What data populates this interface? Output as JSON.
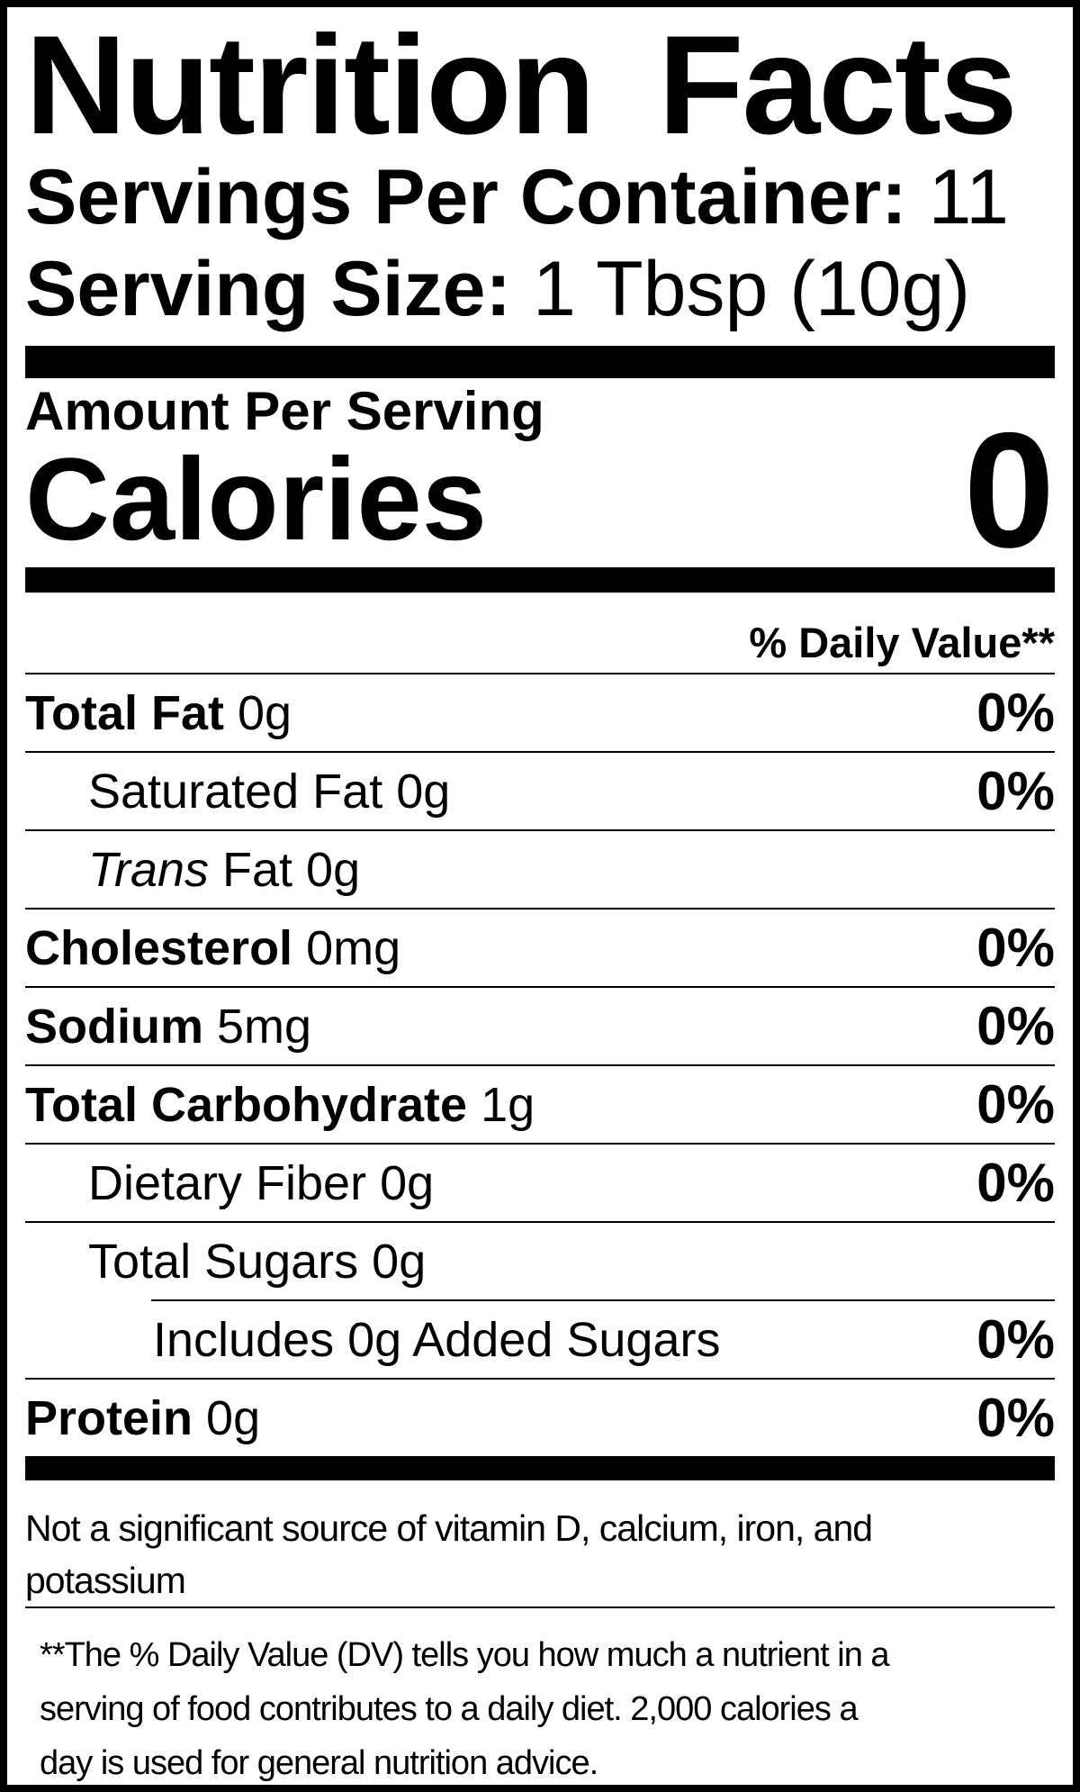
{
  "title": "Nutrition Facts",
  "header": {
    "servings_label": "Servings Per Container:",
    "servings_value": " 11",
    "serving_size_label": "Serving Size:",
    "serving_size_value": " 1 Tbsp (10g)"
  },
  "calories": {
    "section_label": "Amount Per Serving",
    "label": "Calories",
    "value": "0"
  },
  "daily_value_header": "% Daily Value**",
  "rows": [
    {
      "bold": "Total Fat",
      "italic": "",
      "rest": " 0g",
      "dv": "0%"
    },
    {
      "bold": "",
      "italic": "",
      "rest": "Saturated Fat 0g",
      "dv": "0%"
    },
    {
      "bold": "",
      "italic": "Trans",
      "rest": " Fat 0g",
      "dv": ""
    },
    {
      "bold": "Cholesterol",
      "italic": "",
      "rest": " 0mg",
      "dv": "0%"
    },
    {
      "bold": "Sodium",
      "italic": "",
      "rest": " 5mg",
      "dv": "0%"
    },
    {
      "bold": "Total Carbohydrate",
      "italic": "",
      "rest": " 1g",
      "dv": "0%"
    },
    {
      "bold": "",
      "italic": "",
      "rest": "Dietary Fiber 0g",
      "dv": "0%"
    },
    {
      "bold": "",
      "italic": "",
      "rest": "Total Sugars 0g",
      "dv": ""
    },
    {
      "bold": "",
      "italic": "",
      "rest": "Includes 0g Added Sugars",
      "dv": "0%"
    },
    {
      "bold": "Protein",
      "italic": "",
      "rest": " 0g",
      "dv": "0%"
    }
  ],
  "footer": {
    "not_significant": "Not a significant source of vitamin D, calcium, iron, and\npotassium",
    "daily_value_note": "**The % Daily Value (DV) tells you how much a nutrient in a\nserving of food contributes to a daily diet. 2,000 calories a\nday is used for general nutrition advice."
  },
  "colors": {
    "text": "#000000",
    "background": "#ffffff"
  }
}
